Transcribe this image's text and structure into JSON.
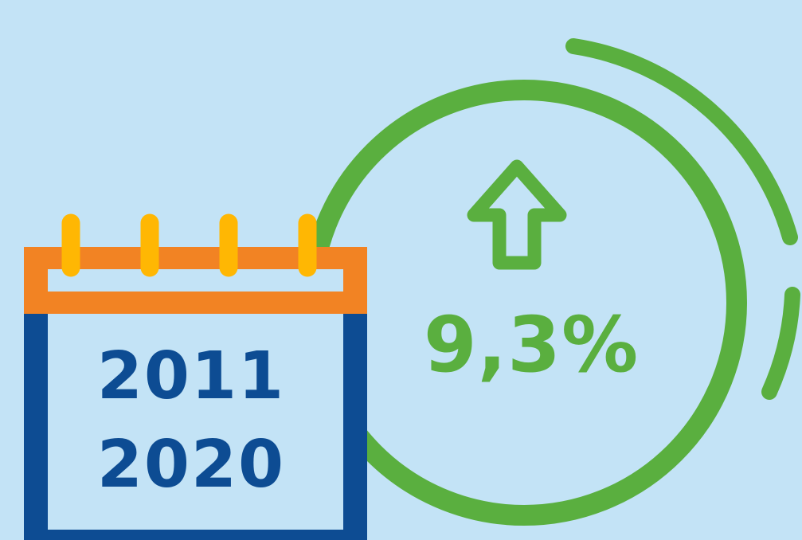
{
  "calendar": {
    "year_start": "2011",
    "year_end": "2020",
    "frame_color": "#0d4c93",
    "header_color": "#f28323",
    "ring_color": "#ffb703"
  },
  "indicator": {
    "value": "9,3%",
    "direction": "up",
    "icon": "arrow-up-icon",
    "color": "#5aaf3f"
  },
  "background_color": "#c3e3f6"
}
